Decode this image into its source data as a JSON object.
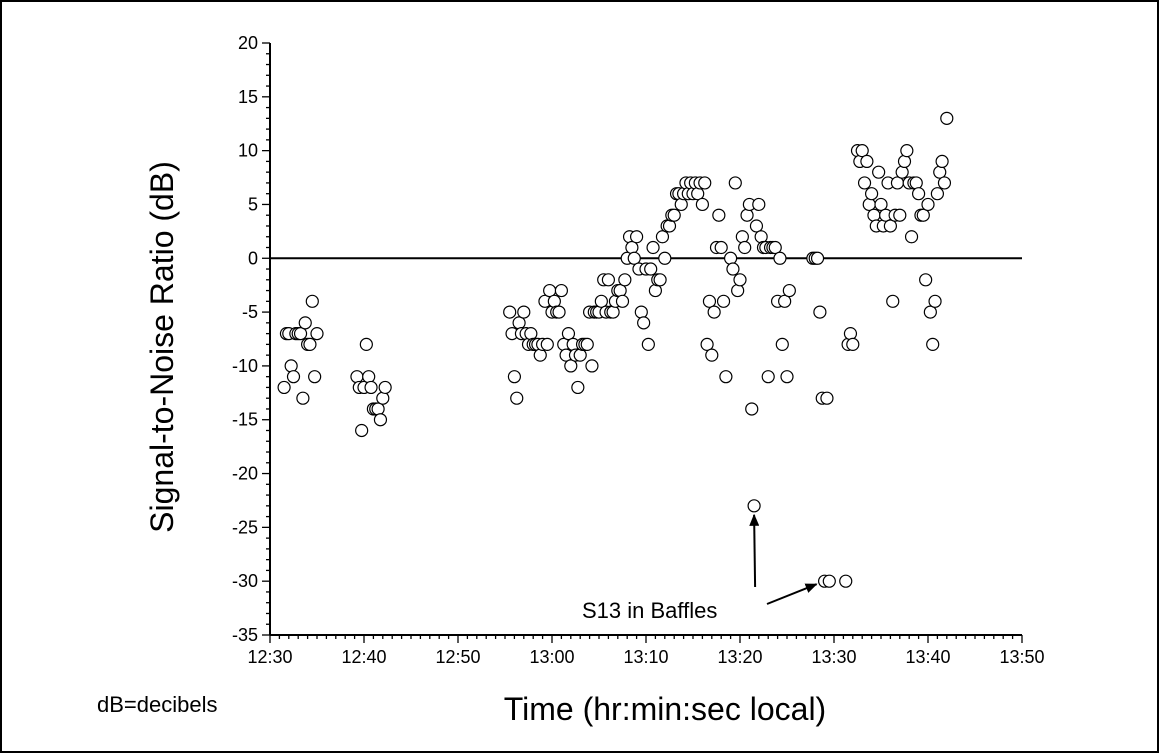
{
  "chart_data": {
    "type": "scatter",
    "title": "",
    "xlabel": "Time (hr:min:sec local)",
    "ylabel": "Signal-to-Noise Ratio (dB)",
    "xlim": [
      "12:30",
      "13:50"
    ],
    "ylim": [
      -35,
      20
    ],
    "x_ticks": [
      "12:30",
      "12:40",
      "12:50",
      "13:00",
      "13:10",
      "13:20",
      "13:30",
      "13:40",
      "13:50"
    ],
    "y_ticks": [
      -35,
      -30,
      -25,
      -20,
      -15,
      -10,
      -5,
      0,
      5,
      10,
      15,
      20
    ],
    "reference_line_y": 0,
    "grid": false,
    "marker": "open-circle",
    "footnote": "dB=decibels",
    "annotation": {
      "text": "S13 in Baffles",
      "points_to": [
        {
          "x": "13:21:30",
          "y": -23
        },
        {
          "x": "13:29:00",
          "y": -30
        }
      ]
    },
    "points": [
      {
        "x": "12:31:30",
        "y": -12
      },
      {
        "x": "12:31:45",
        "y": -7
      },
      {
        "x": "12:32:00",
        "y": -7
      },
      {
        "x": "12:32:15",
        "y": -10
      },
      {
        "x": "12:32:30",
        "y": -11
      },
      {
        "x": "12:32:45",
        "y": -7
      },
      {
        "x": "12:33:00",
        "y": -7
      },
      {
        "x": "12:33:15",
        "y": -7
      },
      {
        "x": "12:33:30",
        "y": -13
      },
      {
        "x": "12:33:45",
        "y": -6
      },
      {
        "x": "12:34:00",
        "y": -8
      },
      {
        "x": "12:34:15",
        "y": -8
      },
      {
        "x": "12:34:30",
        "y": -4
      },
      {
        "x": "12:34:45",
        "y": -11
      },
      {
        "x": "12:35:00",
        "y": -7
      },
      {
        "x": "12:39:15",
        "y": -11
      },
      {
        "x": "12:39:30",
        "y": -12
      },
      {
        "x": "12:39:45",
        "y": -16
      },
      {
        "x": "12:40:00",
        "y": -12
      },
      {
        "x": "12:40:15",
        "y": -8
      },
      {
        "x": "12:40:30",
        "y": -11
      },
      {
        "x": "12:40:45",
        "y": -12
      },
      {
        "x": "12:41:00",
        "y": -14
      },
      {
        "x": "12:41:15",
        "y": -14
      },
      {
        "x": "12:41:30",
        "y": -14
      },
      {
        "x": "12:41:45",
        "y": -15
      },
      {
        "x": "12:42:00",
        "y": -13
      },
      {
        "x": "12:42:15",
        "y": -12
      },
      {
        "x": "12:55:30",
        "y": -5
      },
      {
        "x": "12:55:45",
        "y": -7
      },
      {
        "x": "12:56:00",
        "y": -11
      },
      {
        "x": "12:56:15",
        "y": -13
      },
      {
        "x": "12:56:30",
        "y": -6
      },
      {
        "x": "12:56:45",
        "y": -7
      },
      {
        "x": "12:57:00",
        "y": -5
      },
      {
        "x": "12:57:15",
        "y": -7
      },
      {
        "x": "12:57:30",
        "y": -8
      },
      {
        "x": "12:57:45",
        "y": -7
      },
      {
        "x": "12:58:00",
        "y": -8
      },
      {
        "x": "12:58:15",
        "y": -8
      },
      {
        "x": "12:58:30",
        "y": -8
      },
      {
        "x": "12:58:45",
        "y": -9
      },
      {
        "x": "12:59:00",
        "y": -8
      },
      {
        "x": "12:59:15",
        "y": -4
      },
      {
        "x": "12:59:30",
        "y": -8
      },
      {
        "x": "12:59:45",
        "y": -3
      },
      {
        "x": "13:00:00",
        "y": -5
      },
      {
        "x": "13:00:15",
        "y": -4
      },
      {
        "x": "13:00:30",
        "y": -5
      },
      {
        "x": "13:00:45",
        "y": -5
      },
      {
        "x": "13:01:00",
        "y": -3
      },
      {
        "x": "13:01:15",
        "y": -8
      },
      {
        "x": "13:01:30",
        "y": -9
      },
      {
        "x": "13:01:45",
        "y": -7
      },
      {
        "x": "13:02:00",
        "y": -10
      },
      {
        "x": "13:02:15",
        "y": -8
      },
      {
        "x": "13:02:30",
        "y": -9
      },
      {
        "x": "13:02:45",
        "y": -12
      },
      {
        "x": "13:03:00",
        "y": -9
      },
      {
        "x": "13:03:15",
        "y": -8
      },
      {
        "x": "13:03:30",
        "y": -8
      },
      {
        "x": "13:03:45",
        "y": -8
      },
      {
        "x": "13:04:00",
        "y": -5
      },
      {
        "x": "13:04:15",
        "y": -10
      },
      {
        "x": "13:04:30",
        "y": -5
      },
      {
        "x": "13:04:45",
        "y": -5
      },
      {
        "x": "13:05:00",
        "y": -5
      },
      {
        "x": "13:05:15",
        "y": -4
      },
      {
        "x": "13:05:30",
        "y": -2
      },
      {
        "x": "13:05:45",
        "y": -5
      },
      {
        "x": "13:06:00",
        "y": -2
      },
      {
        "x": "13:06:15",
        "y": -5
      },
      {
        "x": "13:06:30",
        "y": -5
      },
      {
        "x": "13:06:45",
        "y": -4
      },
      {
        "x": "13:07:00",
        "y": -3
      },
      {
        "x": "13:07:15",
        "y": -3
      },
      {
        "x": "13:07:30",
        "y": -4
      },
      {
        "x": "13:07:45",
        "y": -2
      },
      {
        "x": "13:08:00",
        "y": 0
      },
      {
        "x": "13:08:15",
        "y": 2
      },
      {
        "x": "13:08:30",
        "y": 1
      },
      {
        "x": "13:08:45",
        "y": 0
      },
      {
        "x": "13:09:00",
        "y": 2
      },
      {
        "x": "13:09:15",
        "y": -1
      },
      {
        "x": "13:09:30",
        "y": -5
      },
      {
        "x": "13:09:45",
        "y": -6
      },
      {
        "x": "13:10:00",
        "y": -1
      },
      {
        "x": "13:10:15",
        "y": -8
      },
      {
        "x": "13:10:30",
        "y": -1
      },
      {
        "x": "13:10:45",
        "y": 1
      },
      {
        "x": "13:11:00",
        "y": -3
      },
      {
        "x": "13:11:15",
        "y": -2
      },
      {
        "x": "13:11:30",
        "y": -2
      },
      {
        "x": "13:11:45",
        "y": 2
      },
      {
        "x": "13:12:00",
        "y": 0
      },
      {
        "x": "13:12:15",
        "y": 3
      },
      {
        "x": "13:12:30",
        "y": 3
      },
      {
        "x": "13:12:45",
        "y": 4
      },
      {
        "x": "13:13:00",
        "y": 4
      },
      {
        "x": "13:13:15",
        "y": 6
      },
      {
        "x": "13:13:30",
        "y": 6
      },
      {
        "x": "13:13:45",
        "y": 5
      },
      {
        "x": "13:14:00",
        "y": 6
      },
      {
        "x": "13:14:15",
        "y": 7
      },
      {
        "x": "13:14:30",
        "y": 6
      },
      {
        "x": "13:14:45",
        "y": 7
      },
      {
        "x": "13:15:00",
        "y": 6
      },
      {
        "x": "13:15:15",
        "y": 7
      },
      {
        "x": "13:15:30",
        "y": 6
      },
      {
        "x": "13:15:45",
        "y": 7
      },
      {
        "x": "13:16:00",
        "y": 5
      },
      {
        "x": "13:16:15",
        "y": 7
      },
      {
        "x": "13:16:30",
        "y": -8
      },
      {
        "x": "13:16:45",
        "y": -4
      },
      {
        "x": "13:17:00",
        "y": -9
      },
      {
        "x": "13:17:15",
        "y": -5
      },
      {
        "x": "13:17:30",
        "y": 1
      },
      {
        "x": "13:17:45",
        "y": 4
      },
      {
        "x": "13:18:00",
        "y": 1
      },
      {
        "x": "13:18:15",
        "y": -4
      },
      {
        "x": "13:18:30",
        "y": -11
      },
      {
        "x": "13:19:00",
        "y": 0
      },
      {
        "x": "13:19:15",
        "y": -1
      },
      {
        "x": "13:19:30",
        "y": 7
      },
      {
        "x": "13:19:45",
        "y": -3
      },
      {
        "x": "13:20:00",
        "y": -2
      },
      {
        "x": "13:20:15",
        "y": 2
      },
      {
        "x": "13:20:30",
        "y": 1
      },
      {
        "x": "13:20:45",
        "y": 4
      },
      {
        "x": "13:21:00",
        "y": 5
      },
      {
        "x": "13:21:15",
        "y": -14
      },
      {
        "x": "13:21:30",
        "y": -23
      },
      {
        "x": "13:21:45",
        "y": 3
      },
      {
        "x": "13:22:00",
        "y": 5
      },
      {
        "x": "13:22:15",
        "y": 2
      },
      {
        "x": "13:22:30",
        "y": 1
      },
      {
        "x": "13:22:45",
        "y": 1
      },
      {
        "x": "13:23:00",
        "y": -11
      },
      {
        "x": "13:23:15",
        "y": 1
      },
      {
        "x": "13:23:30",
        "y": 1
      },
      {
        "x": "13:23:45",
        "y": 1
      },
      {
        "x": "13:24:00",
        "y": -4
      },
      {
        "x": "13:24:15",
        "y": 0
      },
      {
        "x": "13:24:30",
        "y": -8
      },
      {
        "x": "13:24:45",
        "y": -4
      },
      {
        "x": "13:25:00",
        "y": -11
      },
      {
        "x": "13:25:15",
        "y": -3
      },
      {
        "x": "13:27:45",
        "y": 0
      },
      {
        "x": "13:28:00",
        "y": 0
      },
      {
        "x": "13:28:15",
        "y": 0
      },
      {
        "x": "13:28:30",
        "y": -5
      },
      {
        "x": "13:28:45",
        "y": -13
      },
      {
        "x": "13:29:00",
        "y": -30
      },
      {
        "x": "13:29:15",
        "y": -13
      },
      {
        "x": "13:29:30",
        "y": -30
      },
      {
        "x": "13:31:15",
        "y": -30
      },
      {
        "x": "13:31:30",
        "y": -8
      },
      {
        "x": "13:31:45",
        "y": -7
      },
      {
        "x": "13:32:00",
        "y": -8
      },
      {
        "x": "13:32:30",
        "y": 10
      },
      {
        "x": "13:32:45",
        "y": 9
      },
      {
        "x": "13:33:00",
        "y": 10
      },
      {
        "x": "13:33:15",
        "y": 7
      },
      {
        "x": "13:33:30",
        "y": 9
      },
      {
        "x": "13:33:45",
        "y": 5
      },
      {
        "x": "13:34:00",
        "y": 6
      },
      {
        "x": "13:34:15",
        "y": 4
      },
      {
        "x": "13:34:30",
        "y": 3
      },
      {
        "x": "13:34:45",
        "y": 8
      },
      {
        "x": "13:35:00",
        "y": 5
      },
      {
        "x": "13:35:15",
        "y": 3
      },
      {
        "x": "13:35:30",
        "y": 4
      },
      {
        "x": "13:35:45",
        "y": 7
      },
      {
        "x": "13:36:00",
        "y": 3
      },
      {
        "x": "13:36:15",
        "y": -4
      },
      {
        "x": "13:36:30",
        "y": 4
      },
      {
        "x": "13:36:45",
        "y": 7
      },
      {
        "x": "13:37:00",
        "y": 4
      },
      {
        "x": "13:37:15",
        "y": 8
      },
      {
        "x": "13:37:30",
        "y": 9
      },
      {
        "x": "13:37:45",
        "y": 10
      },
      {
        "x": "13:38:00",
        "y": 7
      },
      {
        "x": "13:38:15",
        "y": 2
      },
      {
        "x": "13:38:30",
        "y": 7
      },
      {
        "x": "13:38:45",
        "y": 7
      },
      {
        "x": "13:39:00",
        "y": 6
      },
      {
        "x": "13:39:15",
        "y": 4
      },
      {
        "x": "13:39:30",
        "y": 4
      },
      {
        "x": "13:39:45",
        "y": -2
      },
      {
        "x": "13:40:00",
        "y": 5
      },
      {
        "x": "13:40:15",
        "y": -5
      },
      {
        "x": "13:40:30",
        "y": -8
      },
      {
        "x": "13:40:45",
        "y": -4
      },
      {
        "x": "13:41:00",
        "y": 6
      },
      {
        "x": "13:41:15",
        "y": 8
      },
      {
        "x": "13:41:30",
        "y": 9
      },
      {
        "x": "13:41:45",
        "y": 7
      },
      {
        "x": "13:42:00",
        "y": 13
      }
    ]
  }
}
